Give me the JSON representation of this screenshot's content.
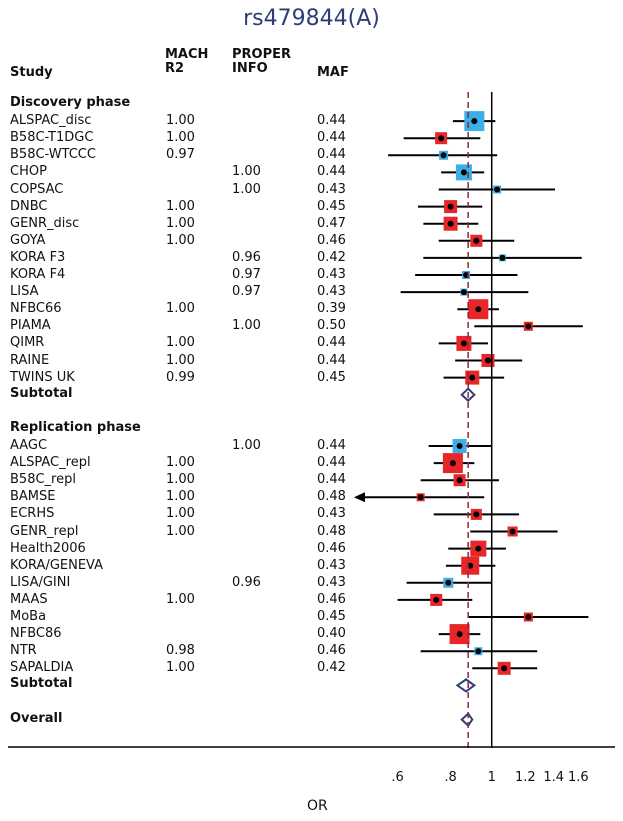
{
  "chart_data": {
    "type": "forest",
    "title": "rs479844(A)",
    "xlabel": "OR",
    "xscale": "log",
    "xlim": [
      0.5,
      1.8
    ],
    "xticks": [
      ".6",
      ".8",
      "1",
      "1.2",
      "1.4",
      "1.6"
    ],
    "xtick_values": [
      0.6,
      0.8,
      1.0,
      1.2,
      1.4,
      1.6
    ],
    "reference_line": 1.0,
    "overall_dashed_line": 0.88,
    "headers": {
      "study": "Study",
      "mach": [
        "MACH",
        "R2"
      ],
      "proper": [
        "PROPER",
        "INFO"
      ],
      "maf": "MAF"
    },
    "sections": [
      {
        "name": "Discovery phase",
        "studies": [
          {
            "study": "ALSPAC_disc",
            "mach_r2": "1.00",
            "proper_info": "",
            "maf": "0.44",
            "or": 0.91,
            "lo": 0.81,
            "hi": 1.02,
            "color": "#3bb0e8",
            "weight": 20
          },
          {
            "study": "B58C-T1DGC",
            "mach_r2": "1.00",
            "proper_info": "",
            "maf": "0.44",
            "or": 0.76,
            "lo": 0.62,
            "hi": 0.94,
            "color": "#e8262a",
            "weight": 12
          },
          {
            "study": "B58C-WTCCC",
            "mach_r2": "0.97",
            "proper_info": "",
            "maf": "0.44",
            "or": 0.77,
            "lo": 0.57,
            "hi": 1.03,
            "color": "#3bb0e8",
            "weight": 9
          },
          {
            "study": "CHOP",
            "mach_r2": "",
            "proper_info": "1.00",
            "maf": "0.44",
            "or": 0.86,
            "lo": 0.76,
            "hi": 0.96,
            "color": "#3bb0e8",
            "weight": 16
          },
          {
            "study": "COPSAC",
            "mach_r2": "",
            "proper_info": "1.00",
            "maf": "0.43",
            "or": 1.03,
            "lo": 0.75,
            "hi": 1.41,
            "color": "#3bb0e8",
            "weight": 8
          },
          {
            "study": "DNBC",
            "mach_r2": "1.00",
            "proper_info": "",
            "maf": "0.45",
            "or": 0.8,
            "lo": 0.67,
            "hi": 0.95,
            "color": "#e8262a",
            "weight": 13
          },
          {
            "study": "GENR_disc",
            "mach_r2": "1.00",
            "proper_info": "",
            "maf": "0.47",
            "or": 0.8,
            "lo": 0.69,
            "hi": 0.93,
            "color": "#e8262a",
            "weight": 14
          },
          {
            "study": "GOYA",
            "mach_r2": "1.00",
            "proper_info": "",
            "maf": "0.46",
            "or": 0.92,
            "lo": 0.75,
            "hi": 1.13,
            "color": "#e8262a",
            "weight": 12
          },
          {
            "study": "KORA F3",
            "mach_r2": "",
            "proper_info": "0.96",
            "maf": "0.42",
            "or": 1.06,
            "lo": 0.69,
            "hi": 1.63,
            "color": "#3bb0e8",
            "weight": 7
          },
          {
            "study": "KORA F4",
            "mach_r2": "",
            "proper_info": "0.97",
            "maf": "0.43",
            "or": 0.87,
            "lo": 0.66,
            "hi": 1.15,
            "color": "#3bb0e8",
            "weight": 8
          },
          {
            "study": "LISA",
            "mach_r2": "",
            "proper_info": "0.97",
            "maf": "0.43",
            "or": 0.86,
            "lo": 0.61,
            "hi": 1.22,
            "color": "#3bb0e8",
            "weight": 7
          },
          {
            "study": "NFBC66",
            "mach_r2": "1.00",
            "proper_info": "",
            "maf": "0.39",
            "or": 0.93,
            "lo": 0.83,
            "hi": 1.04,
            "color": "#e8262a",
            "weight": 20
          },
          {
            "study": "PIAMA",
            "mach_r2": "",
            "proper_info": "1.00",
            "maf": "0.50",
            "or": 1.22,
            "lo": 0.91,
            "hi": 1.64,
            "color": "#e8262a",
            "weight": 9
          },
          {
            "study": "QIMR",
            "mach_r2": "1.00",
            "proper_info": "",
            "maf": "0.44",
            "or": 0.86,
            "lo": 0.75,
            "hi": 0.98,
            "color": "#e8262a",
            "weight": 15
          },
          {
            "study": "RAINE",
            "mach_r2": "1.00",
            "proper_info": "",
            "maf": "0.44",
            "or": 0.98,
            "lo": 0.82,
            "hi": 1.18,
            "color": "#e8262a",
            "weight": 13
          },
          {
            "study": "TWINS UK",
            "mach_r2": "0.99",
            "proper_info": "",
            "maf": "0.45",
            "or": 0.9,
            "lo": 0.77,
            "hi": 1.07,
            "color": "#e8262a",
            "weight": 14
          }
        ],
        "subtotal": {
          "label": "Subtotal",
          "or": 0.88,
          "lo": 0.85,
          "hi": 0.91
        }
      },
      {
        "name": "Replication phase",
        "studies": [
          {
            "study": "AAGC",
            "mach_r2": "",
            "proper_info": "1.00",
            "maf": "0.44",
            "or": 0.84,
            "lo": 0.71,
            "hi": 1.0,
            "color": "#3bb0e8",
            "weight": 14
          },
          {
            "study": "ALSPAC_repl",
            "mach_r2": "1.00",
            "proper_info": "",
            "maf": "0.44",
            "or": 0.81,
            "lo": 0.73,
            "hi": 0.91,
            "color": "#e8262a",
            "weight": 20
          },
          {
            "study": "B58C_repl",
            "mach_r2": "1.00",
            "proper_info": "",
            "maf": "0.44",
            "or": 0.84,
            "lo": 0.68,
            "hi": 1.04,
            "color": "#e8262a",
            "weight": 12
          },
          {
            "study": "BAMSE",
            "mach_r2": "1.00",
            "proper_info": "",
            "maf": "0.48",
            "or": 0.68,
            "lo": 0.52,
            "hi": 0.96,
            "color": "#e8262a",
            "weight": 8,
            "arrow_left": true
          },
          {
            "study": "ECRHS",
            "mach_r2": "1.00",
            "proper_info": "",
            "maf": "0.43",
            "or": 0.92,
            "lo": 0.73,
            "hi": 1.16,
            "color": "#e8262a",
            "weight": 11
          },
          {
            "study": "GENR_repl",
            "mach_r2": "1.00",
            "proper_info": "",
            "maf": "0.48",
            "or": 1.12,
            "lo": 0.89,
            "hi": 1.43,
            "color": "#e8262a",
            "weight": 10
          },
          {
            "study": "Health2006",
            "mach_r2": "",
            "proper_info": "",
            "maf": "0.46",
            "or": 0.93,
            "lo": 0.79,
            "hi": 1.08,
            "color": "#e8262a",
            "weight": 16
          },
          {
            "study": "KORA/GENEVA",
            "mach_r2": "",
            "proper_info": "",
            "maf": "0.43",
            "or": 0.89,
            "lo": 0.78,
            "hi": 1.02,
            "color": "#e8262a",
            "weight": 18
          },
          {
            "study": "LISA/GINI",
            "mach_r2": "",
            "proper_info": "0.96",
            "maf": "0.43",
            "or": 0.79,
            "lo": 0.63,
            "hi": 1.0,
            "color": "#3bb0e8",
            "weight": 10
          },
          {
            "study": "MAAS",
            "mach_r2": "1.00",
            "proper_info": "",
            "maf": "0.46",
            "or": 0.74,
            "lo": 0.6,
            "hi": 0.9,
            "color": "#e8262a",
            "weight": 12
          },
          {
            "study": "MoBa",
            "mach_r2": "",
            "proper_info": "",
            "maf": "0.45",
            "or": 1.22,
            "lo": 0.88,
            "hi": 1.69,
            "color": "#e8262a",
            "weight": 9
          },
          {
            "study": "NFBC86",
            "mach_r2": "",
            "proper_info": "",
            "maf": "0.40",
            "or": 0.84,
            "lo": 0.75,
            "hi": 0.94,
            "color": "#e8262a",
            "weight": 20
          },
          {
            "study": "NTR",
            "mach_r2": "0.98",
            "proper_info": "",
            "maf": "0.46",
            "or": 0.93,
            "lo": 0.68,
            "hi": 1.28,
            "color": "#3bb0e8",
            "weight": 8
          },
          {
            "study": "SAPALDIA",
            "mach_r2": "1.00",
            "proper_info": "",
            "maf": "0.42",
            "or": 1.07,
            "lo": 0.9,
            "hi": 1.28,
            "color": "#e8262a",
            "weight": 13
          }
        ],
        "subtotal": {
          "label": "Subtotal",
          "or": 0.87,
          "lo": 0.83,
          "hi": 0.91
        }
      }
    ],
    "overall": {
      "label": "Overall",
      "or": 0.88,
      "lo": 0.85,
      "hi": 0.9
    },
    "colors": {
      "red": "#e8262a",
      "blue": "#3bb0e8",
      "title": "#2e3d78",
      "diamond": "#2e3d78",
      "dashed": "#8b2a3a"
    }
  }
}
